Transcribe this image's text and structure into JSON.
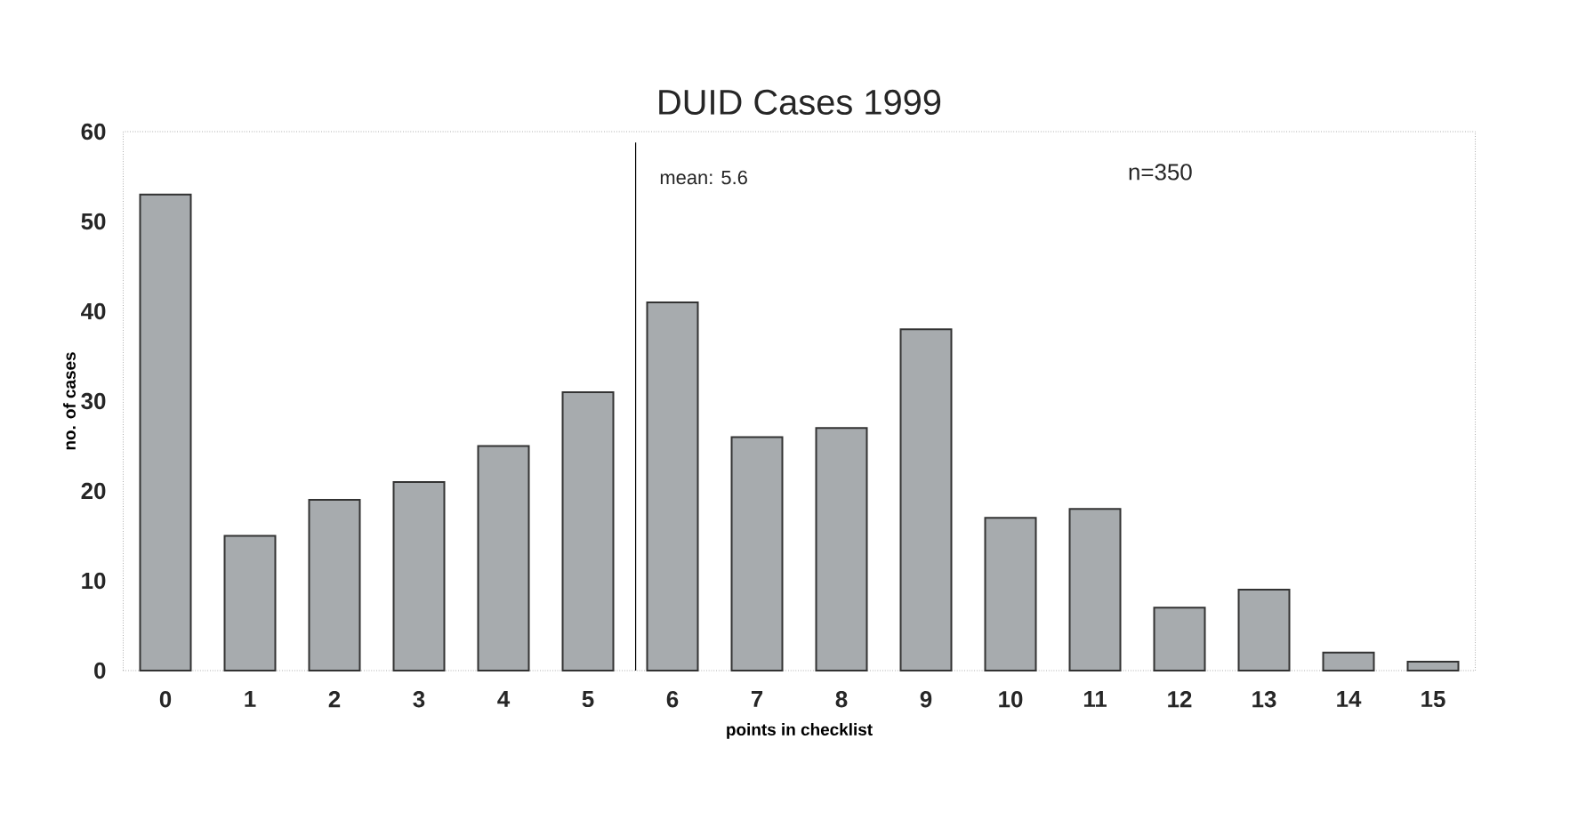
{
  "chart_data": {
    "type": "bar",
    "title": "DUID Cases 1999",
    "xlabel": "points in checklist",
    "ylabel": "no. of cases",
    "categories": [
      "0",
      "1",
      "2",
      "3",
      "4",
      "5",
      "6",
      "7",
      "8",
      "9",
      "10",
      "11",
      "12",
      "13",
      "14",
      "15"
    ],
    "values": [
      53,
      15,
      19,
      21,
      25,
      31,
      41,
      26,
      27,
      38,
      17,
      18,
      7,
      9,
      2,
      1
    ],
    "color": "#a7abae",
    "ylim": [
      0,
      60
    ],
    "yticks": [
      0,
      10,
      20,
      30,
      40,
      50,
      60
    ],
    "annotations": [
      "mean: 5.6",
      "n=350"
    ]
  }
}
